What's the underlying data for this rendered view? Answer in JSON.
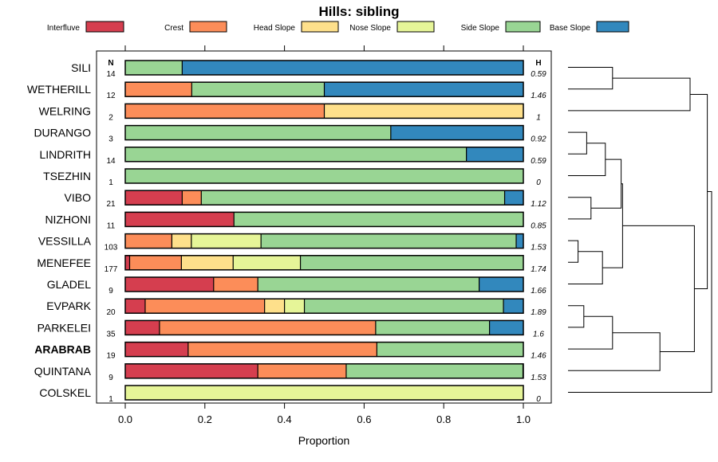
{
  "chart_data": {
    "type": "bar",
    "orientation": "horizontal-stacked",
    "title": "Hills: sibling",
    "xlabel": "Proportion",
    "ylabel": "",
    "xlim": [
      0,
      1
    ],
    "x_ticks": [
      "0.0",
      "0.2",
      "0.4",
      "0.6",
      "0.8",
      "1.0"
    ],
    "n_header": "N",
    "h_header": "H",
    "legend_position": "top",
    "series_names": [
      "Interfluve",
      "Crest",
      "Head Slope",
      "Nose Slope",
      "Side Slope",
      "Base Slope"
    ],
    "colors": [
      "#d53e4f",
      "#fc8d59",
      "#fee08b",
      "#e6f598",
      "#99d594",
      "#3288bd"
    ],
    "categories": [
      "SILI",
      "WETHERILL",
      "WELRING",
      "DURANGO",
      "LINDRITH",
      "TSEZHIN",
      "VIBO",
      "NIZHONI",
      "VESSILLA",
      "MENEFEE",
      "GLADEL",
      "EVPARK",
      "PARKELEI",
      "ARABRAB",
      "QUINTANA",
      "COLSKEL"
    ],
    "highlight": "ARABRAB",
    "n": [
      "14",
      "12",
      "2",
      "3",
      "14",
      "1",
      "21",
      "11",
      "103",
      "177",
      "9",
      "20",
      "35",
      "19",
      "9",
      "1"
    ],
    "h": [
      "0.59",
      "1.46",
      "1",
      "0.92",
      "0.59",
      "0",
      "1.12",
      "0.85",
      "1.53",
      "1.74",
      "1.66",
      "1.89",
      "1.6",
      "1.46",
      "1.53",
      "0"
    ],
    "values": [
      [
        0,
        0,
        0,
        0,
        0.143,
        0.857
      ],
      [
        0,
        0.167,
        0,
        0,
        0.333,
        0.5
      ],
      [
        0,
        0.5,
        0.5,
        0,
        0,
        0
      ],
      [
        0,
        0,
        0,
        0,
        0.667,
        0.333
      ],
      [
        0,
        0,
        0,
        0,
        0.857,
        0.143
      ],
      [
        0,
        0,
        0,
        0,
        1.0,
        0
      ],
      [
        0.143,
        0.048,
        0,
        0,
        0.762,
        0.048
      ],
      [
        0.273,
        0,
        0,
        0,
        0.727,
        0
      ],
      [
        0,
        0.117,
        0.049,
        0.175,
        0.641,
        0.019
      ],
      [
        0.011,
        0.13,
        0.13,
        0.169,
        0.56,
        0
      ],
      [
        0.222,
        0.111,
        0,
        0,
        0.556,
        0.111
      ],
      [
        0.05,
        0.3,
        0.05,
        0.05,
        0.5,
        0.05
      ],
      [
        0.086,
        0.543,
        0,
        0,
        0.286,
        0.086
      ],
      [
        0.158,
        0.474,
        0,
        0,
        0.368,
        0
      ],
      [
        0.333,
        0.222,
        0,
        0,
        0.444,
        0
      ],
      [
        0,
        0,
        0,
        1.0,
        0,
        0
      ]
    ],
    "dendrogram": {
      "leaves": [
        "SILI",
        "WETHERILL",
        "WELRING",
        "DURANGO",
        "LINDRITH",
        "TSEZHIN",
        "VIBO",
        "NIZHONI",
        "VESSILLA",
        "MENEFEE",
        "GLADEL",
        "EVPARK",
        "PARKELEI",
        "ARABRAB",
        "QUINTANA",
        "COLSKEL"
      ],
      "merges": [
        [
          0,
          1,
          0.31
        ],
        [
          16,
          2,
          0.85
        ],
        [
          3,
          4,
          0.13
        ],
        [
          18,
          5,
          0.26
        ],
        [
          6,
          7,
          0.16
        ],
        [
          19,
          20,
          0.37
        ],
        [
          8,
          9,
          0.07
        ],
        [
          22,
          10,
          0.24
        ],
        [
          21,
          23,
          0.38
        ],
        [
          11,
          12,
          0.11
        ],
        [
          25,
          13,
          0.31
        ],
        [
          26,
          14,
          0.64
        ],
        [
          24,
          27,
          0.88
        ],
        [
          17,
          28,
          0.97
        ],
        [
          29,
          15,
          1.0
        ]
      ]
    }
  }
}
